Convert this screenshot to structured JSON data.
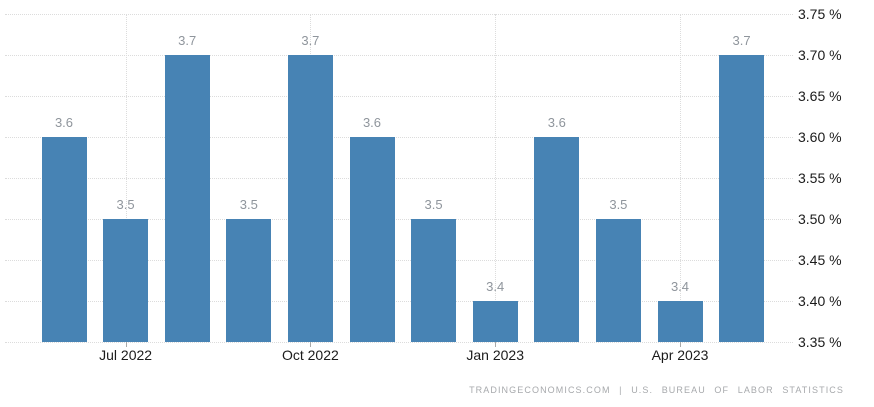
{
  "chart_data": {
    "type": "bar",
    "title": "",
    "subtitle": "",
    "unit": "%",
    "values": [
      3.6,
      3.5,
      3.7,
      3.5,
      3.7,
      3.6,
      3.5,
      3.4,
      3.6,
      3.5,
      3.4,
      3.7
    ],
    "bar_value_labels": [
      "3.6",
      "3.5",
      "3.7",
      "3.5",
      "3.7",
      "3.6",
      "3.5",
      "3.4",
      "3.6",
      "3.5",
      "3.4",
      "3.7"
    ],
    "x_tick_labels": [
      "Jul 2022",
      "Oct 2022",
      "Jan 2023",
      "Apr 2023"
    ],
    "x_tick_bar_indices": [
      1,
      4,
      7,
      10
    ],
    "y_tick_labels": [
      "3.75 %",
      "3.70 %",
      "3.65 %",
      "3.60 %",
      "3.55 %",
      "3.50 %",
      "3.45 %",
      "3.40 %",
      "3.35 %"
    ],
    "y_axis_position": "right",
    "ylim": [
      3.35,
      3.75
    ],
    "y_tick_step": 0.05,
    "grid": "dotted",
    "legend": "none",
    "bar_color": "#4783b4",
    "value_label_color": "#8f959c",
    "axis_text_color": "#1b1b1b",
    "gridline_color": "#dcdcdc"
  },
  "footer": {
    "attribution": "TRADINGECONOMICS.COM | U.S. BUREAU OF LABOR STATISTICS"
  }
}
